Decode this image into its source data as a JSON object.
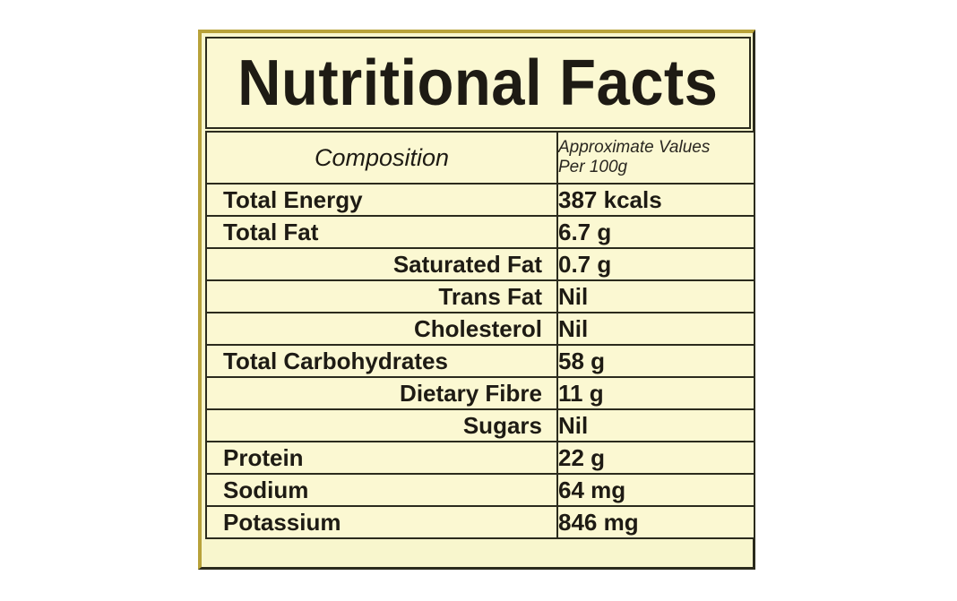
{
  "label": {
    "title": "Nutritional Facts",
    "header": {
      "composition": "Composition",
      "values_line1": "Approximate Values",
      "values_line2": "Per 100g"
    },
    "rows": [
      {
        "name": "Total Energy",
        "value": "387 kcals",
        "indent": false
      },
      {
        "name": "Total Fat",
        "value": "6.7 g",
        "indent": false
      },
      {
        "name": "Saturated Fat",
        "value": "0.7 g",
        "indent": true
      },
      {
        "name": "Trans Fat",
        "value": "Nil",
        "indent": true
      },
      {
        "name": "Cholesterol",
        "value": "Nil",
        "indent": true
      },
      {
        "name": "Total Carbohydrates",
        "value": "58 g",
        "indent": false
      },
      {
        "name": "Dietary Fibre",
        "value": "11 g",
        "indent": true
      },
      {
        "name": "Sugars",
        "value": "Nil",
        "indent": true
      },
      {
        "name": "Protein",
        "value": "22 g",
        "indent": false
      },
      {
        "name": "Sodium",
        "value": "64 mg",
        "indent": false
      },
      {
        "name": "Potassium",
        "value": "846 mg",
        "indent": false
      }
    ],
    "colors": {
      "background": "#f8f6cd",
      "border": "#2b2b1d",
      "frame_accent": "#b8a23a",
      "text": "#1e1b14"
    }
  }
}
